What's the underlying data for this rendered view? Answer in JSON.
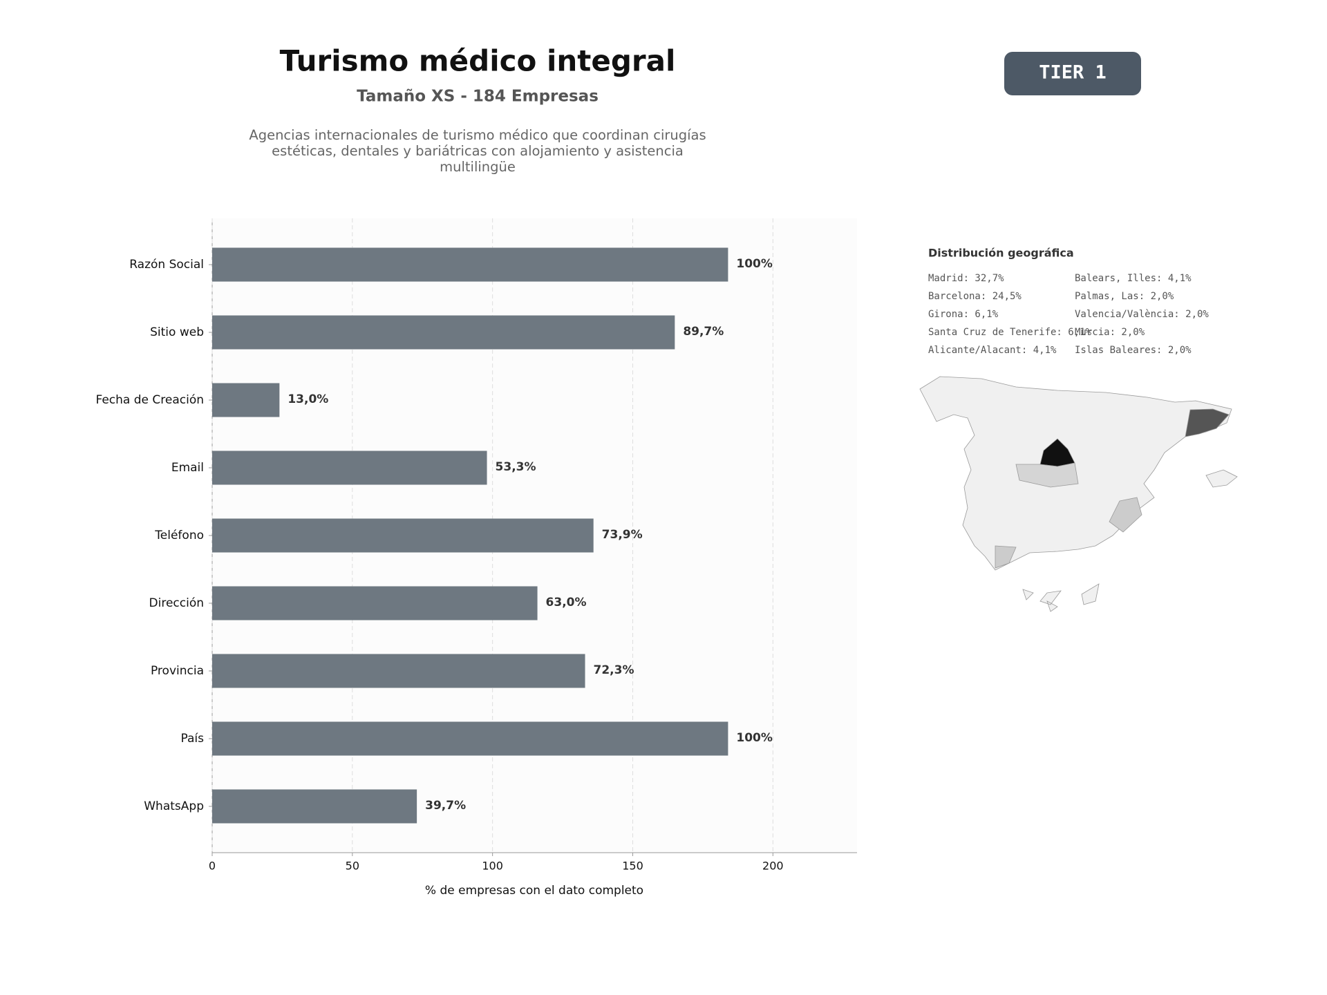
{
  "header": {
    "title": "Turismo médico integral",
    "subtitle": "Tamaño XS - 184 Empresas",
    "description": "Agencias internacionales de turismo médico que coordinan cirugías estéticas, dentales y bariátricas con alojamiento y asistencia multilingüe",
    "badge": "TIER 1"
  },
  "chart_data": {
    "type": "bar",
    "orientation": "horizontal",
    "categories": [
      "Razón Social",
      "Sitio web",
      "Fecha de Creación",
      "Email",
      "Teléfono",
      "Dirección",
      "Provincia",
      "País",
      "WhatsApp"
    ],
    "values": [
      184,
      165,
      24,
      98,
      136,
      116,
      133,
      184,
      73
    ],
    "value_labels": [
      "100%",
      "89,7%",
      "13,0%",
      "53,3%",
      "73,9%",
      "63,0%",
      "72,3%",
      "100%",
      "39,7%"
    ],
    "color": "#6e7881",
    "xlim": [
      0,
      230
    ],
    "xticks": [
      0,
      50,
      100,
      150,
      200
    ],
    "grid": true,
    "xlabel": "% de empresas con el dato completo"
  },
  "geo": {
    "title": "Distribución geográfica",
    "items": [
      "Madrid: 32,7%",
      "Barcelona: 24,5%",
      "Girona: 6,1%",
      "Santa Cruz de Tenerife: 6,1%",
      "Alicante/Alacant: 4,1%",
      "Balears, Illes: 4,1%",
      "Palmas, Las: 2,0%",
      "Valencia/València: 2,0%",
      "Murcia: 2,0%",
      "Islas Baleares: 2,0%"
    ]
  }
}
